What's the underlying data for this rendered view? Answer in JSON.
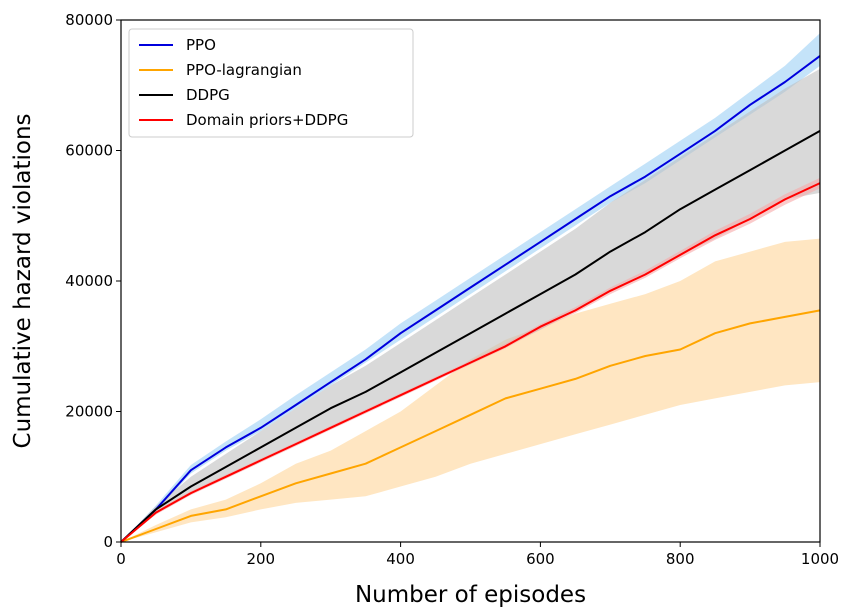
{
  "chart_data": {
    "type": "line",
    "title": "",
    "xlabel": "Number of episodes",
    "ylabel": "Cumulative hazard violations",
    "xlim": [
      0,
      1000
    ],
    "ylim": [
      0,
      80000
    ],
    "x_ticks": [
      0,
      200,
      400,
      600,
      800,
      1000
    ],
    "y_ticks": [
      0,
      20000,
      40000,
      60000,
      80000
    ],
    "grid": false,
    "legend_position": "top-left",
    "x": [
      0,
      50,
      100,
      150,
      200,
      250,
      300,
      350,
      400,
      450,
      500,
      550,
      600,
      650,
      700,
      750,
      800,
      850,
      900,
      950,
      1000
    ],
    "series": [
      {
        "name": "PPO",
        "color": "#0000dd",
        "band_color": "#9dd0f5",
        "values": [
          0,
          5000,
          11000,
          14500,
          17500,
          21000,
          24500,
          28000,
          32000,
          35500,
          39000,
          42500,
          46000,
          49500,
          53000,
          56000,
          59500,
          63000,
          67000,
          70500,
          74500
        ],
        "lower": [
          0,
          4700,
          10500,
          14000,
          17000,
          20500,
          24000,
          27500,
          31000,
          34500,
          38000,
          41500,
          45000,
          48500,
          52000,
          55000,
          58500,
          62000,
          65500,
          69000,
          73000
        ],
        "upper": [
          0,
          5600,
          11800,
          15400,
          18800,
          22500,
          26000,
          29500,
          33500,
          37000,
          40500,
          44000,
          47500,
          51000,
          54500,
          58000,
          61500,
          65000,
          69000,
          73000,
          78000
        ]
      },
      {
        "name": "PPO-lagrangian",
        "color": "#ffa500",
        "band_color": "#ffd699",
        "values": [
          0,
          2000,
          4000,
          5000,
          7000,
          9000,
          10500,
          12000,
          14500,
          17000,
          19500,
          22000,
          23500,
          25000,
          27000,
          28500,
          29500,
          32000,
          33500,
          34500,
          35500
        ],
        "lower": [
          0,
          1500,
          3000,
          3800,
          5000,
          6000,
          6500,
          7000,
          8500,
          10000,
          12000,
          13500,
          15000,
          16500,
          18000,
          19500,
          21000,
          22000,
          23000,
          24000,
          24500
        ],
        "upper": [
          0,
          2600,
          5000,
          6500,
          9000,
          12000,
          14000,
          17000,
          20000,
          24000,
          28000,
          31000,
          33000,
          35000,
          36500,
          38000,
          40000,
          43000,
          44500,
          46000,
          46500
        ]
      },
      {
        "name": "DDPG",
        "color": "#000000",
        "band_color": "#bfbfbf",
        "values": [
          0,
          5000,
          8500,
          11500,
          14500,
          17500,
          20500,
          23000,
          26000,
          29000,
          32000,
          35000,
          38000,
          41000,
          44500,
          47500,
          51000,
          54000,
          57000,
          60000,
          63000
        ],
        "lower": [
          0,
          4500,
          7600,
          10000,
          12500,
          15000,
          17500,
          20000,
          22500,
          25000,
          27500,
          30000,
          32500,
          35500,
          38500,
          41000,
          44000,
          46500,
          49500,
          52500,
          53500
        ],
        "upper": [
          0,
          5500,
          10000,
          13500,
          17000,
          20500,
          24000,
          27000,
          30500,
          34000,
          37500,
          41000,
          44500,
          48000,
          52000,
          55500,
          59000,
          62500,
          66000,
          69500,
          72500
        ]
      },
      {
        "name": "Domain priors+DDPG",
        "color": "#ff0000",
        "band_color": "#f7a8a8",
        "values": [
          0,
          4500,
          7500,
          10000,
          12500,
          15000,
          17500,
          20000,
          22500,
          25000,
          27500,
          30000,
          33000,
          35500,
          38500,
          41000,
          44000,
          47000,
          49500,
          52500,
          55000
        ],
        "lower": [
          0,
          4200,
          7200,
          9700,
          12200,
          14700,
          17200,
          19700,
          22200,
          24700,
          27200,
          29700,
          32600,
          35100,
          38000,
          40500,
          43500,
          46300,
          48800,
          51700,
          54200
        ],
        "upper": [
          0,
          4800,
          7800,
          10300,
          12800,
          15300,
          17800,
          20300,
          22800,
          25300,
          27800,
          30400,
          33400,
          36000,
          39000,
          41600,
          44600,
          47700,
          50300,
          53300,
          55800
        ]
      }
    ]
  }
}
